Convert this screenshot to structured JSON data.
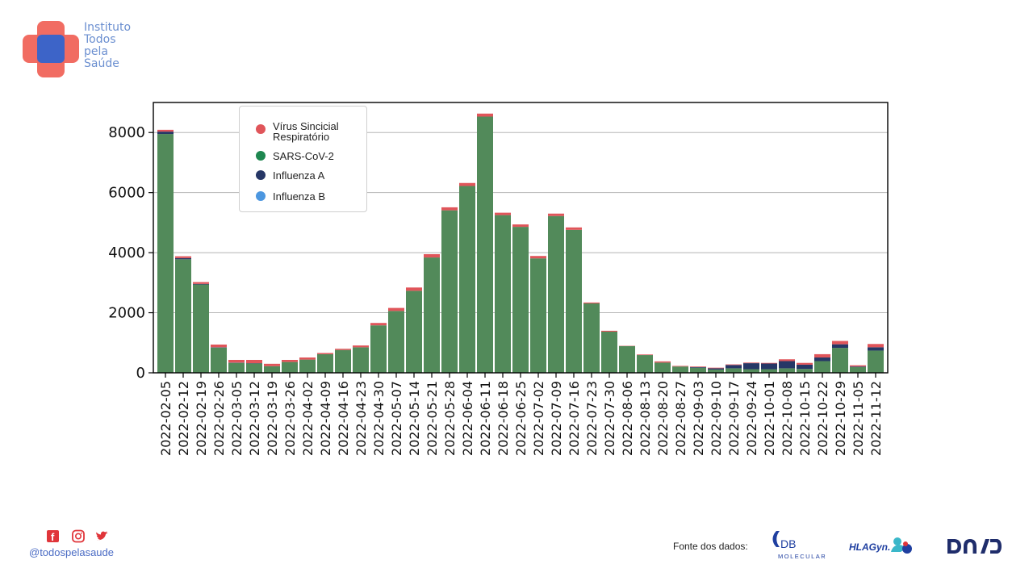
{
  "brand": {
    "name_lines": [
      "Instituto",
      "Todos",
      "pela",
      "Saúde"
    ],
    "handle": "@todospelasaude",
    "social_icons": [
      "facebook-icon",
      "instagram-icon",
      "twitter-icon"
    ],
    "colors": {
      "red": "#f0645a",
      "blue": "#3d64c8",
      "text": "#6b8fd0"
    }
  },
  "footer": {
    "source_label": "Fonte dos dados:",
    "partners": [
      "DB MOLECULAR",
      "HLAGyn",
      "DASA"
    ]
  },
  "chart_data": {
    "type": "bar",
    "stacked": true,
    "ylim": [
      0,
      9000
    ],
    "yticks": [
      0,
      2000,
      4000,
      6000,
      8000
    ],
    "grid": true,
    "legend_position": "top-left",
    "categories": [
      "2022-02-05",
      "2022-02-12",
      "2022-02-19",
      "2022-02-26",
      "2022-03-05",
      "2022-03-12",
      "2022-03-19",
      "2022-03-26",
      "2022-04-02",
      "2022-04-09",
      "2022-04-16",
      "2022-04-23",
      "2022-04-30",
      "2022-05-07",
      "2022-05-14",
      "2022-05-21",
      "2022-05-28",
      "2022-06-04",
      "2022-06-11",
      "2022-06-18",
      "2022-06-25",
      "2022-07-02",
      "2022-07-09",
      "2022-07-16",
      "2022-07-23",
      "2022-07-30",
      "2022-08-06",
      "2022-08-13",
      "2022-08-20",
      "2022-08-27",
      "2022-09-03",
      "2022-09-10",
      "2022-09-17",
      "2022-09-24",
      "2022-10-01",
      "2022-10-08",
      "2022-10-15",
      "2022-10-22",
      "2022-10-29",
      "2022-11-05",
      "2022-11-12"
    ],
    "series": [
      {
        "name": "SARS-CoV-2",
        "color": "#528a5a",
        "values": [
          7950,
          3780,
          2940,
          840,
          330,
          310,
          220,
          360,
          440,
          620,
          760,
          850,
          1580,
          2060,
          2730,
          3840,
          5410,
          6220,
          8530,
          5250,
          4860,
          3810,
          5220,
          4760,
          2310,
          1370,
          890,
          590,
          340,
          210,
          170,
          110,
          150,
          120,
          120,
          150,
          130,
          390,
          830,
          190,
          740
        ]
      },
      {
        "name": "Influenza A",
        "color": "#263766",
        "values": [
          80,
          40,
          20,
          10,
          10,
          10,
          0,
          0,
          0,
          0,
          0,
          0,
          0,
          0,
          0,
          0,
          0,
          0,
          0,
          0,
          0,
          0,
          0,
          0,
          0,
          0,
          0,
          0,
          0,
          0,
          20,
          40,
          110,
          200,
          190,
          240,
          140,
          120,
          120,
          20,
          110
        ]
      },
      {
        "name": "Influenza B",
        "color": "#4c97e0",
        "values": [
          0,
          0,
          0,
          0,
          0,
          0,
          0,
          0,
          0,
          0,
          0,
          0,
          0,
          0,
          0,
          0,
          0,
          0,
          0,
          0,
          0,
          0,
          0,
          0,
          0,
          0,
          0,
          0,
          0,
          0,
          0,
          0,
          0,
          0,
          0,
          0,
          0,
          0,
          0,
          0,
          0
        ]
      },
      {
        "name": "Vírus Sincicial Respiratório",
        "color": "#e0555a",
        "values": [
          60,
          60,
          60,
          90,
          90,
          110,
          80,
          70,
          70,
          40,
          40,
          60,
          80,
          100,
          110,
          110,
          100,
          100,
          100,
          80,
          80,
          80,
          80,
          80,
          30,
          30,
          10,
          20,
          40,
          20,
          20,
          20,
          20,
          20,
          20,
          60,
          60,
          110,
          110,
          40,
          110
        ]
      }
    ],
    "legend_order": [
      "Vírus Sincicial Respiratório",
      "SARS-CoV-2",
      "Influenza A",
      "Influenza B"
    ],
    "legend_lines": [
      [
        "Vírus Sincicial",
        "Respiratório"
      ],
      [
        "SARS-CoV-2"
      ],
      [
        "Influenza A"
      ],
      [
        "Influenza B"
      ]
    ]
  }
}
